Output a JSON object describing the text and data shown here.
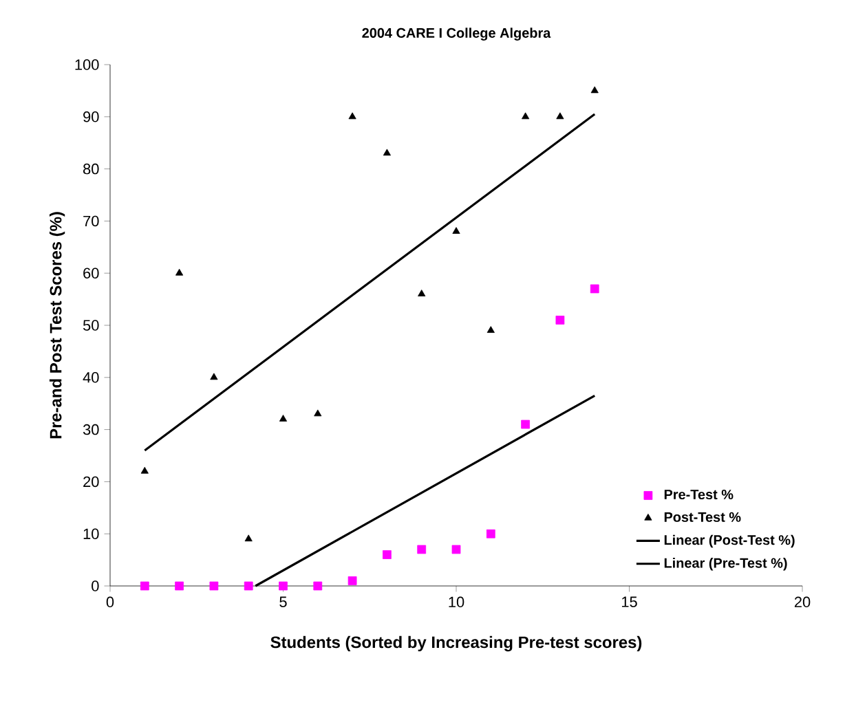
{
  "chart_data": {
    "type": "scatter",
    "title": "2004 CARE I College Algebra",
    "xlabel": "Students (Sorted by Increasing Pre-test scores)",
    "ylabel": "Pre-and Post Test Scores (%)",
    "xlim": [
      0,
      20
    ],
    "xticks": [
      0,
      5,
      10,
      15,
      20
    ],
    "ylim": [
      0,
      100
    ],
    "yticks": [
      0,
      10,
      20,
      30,
      40,
      50,
      60,
      70,
      80,
      90,
      100
    ],
    "grid": false,
    "legend": "bottom right",
    "series": [
      {
        "name": "Pre-Test %",
        "marker": "square",
        "color": "#ff00ff",
        "x": [
          1,
          2,
          3,
          4,
          5,
          6,
          7,
          8,
          9,
          10,
          11,
          12,
          13,
          14
        ],
        "values": [
          0,
          0,
          0,
          0,
          0,
          0,
          1,
          6,
          7,
          7,
          10,
          31,
          51,
          57
        ]
      },
      {
        "name": "Post-Test %",
        "marker": "triangle",
        "color": "#000000",
        "x": [
          1,
          2,
          3,
          4,
          5,
          6,
          7,
          8,
          9,
          10,
          11,
          12,
          13,
          14
        ],
        "values": [
          22,
          60,
          40,
          9,
          32,
          33,
          90,
          83,
          56,
          68,
          49,
          90,
          90,
          95
        ]
      },
      {
        "name": "Linear (Post-Test %)",
        "type": "line",
        "marker": "none",
        "line_style": "solid",
        "color": "#000000",
        "x": [
          1,
          14
        ],
        "values": [
          26,
          90.5
        ]
      },
      {
        "name": "Linear (Pre-Test %)",
        "type": "line",
        "marker": "none",
        "line_style": "solid",
        "color": "#000000",
        "x": [
          4.2,
          14
        ],
        "values": [
          0,
          36.5
        ]
      }
    ]
  }
}
